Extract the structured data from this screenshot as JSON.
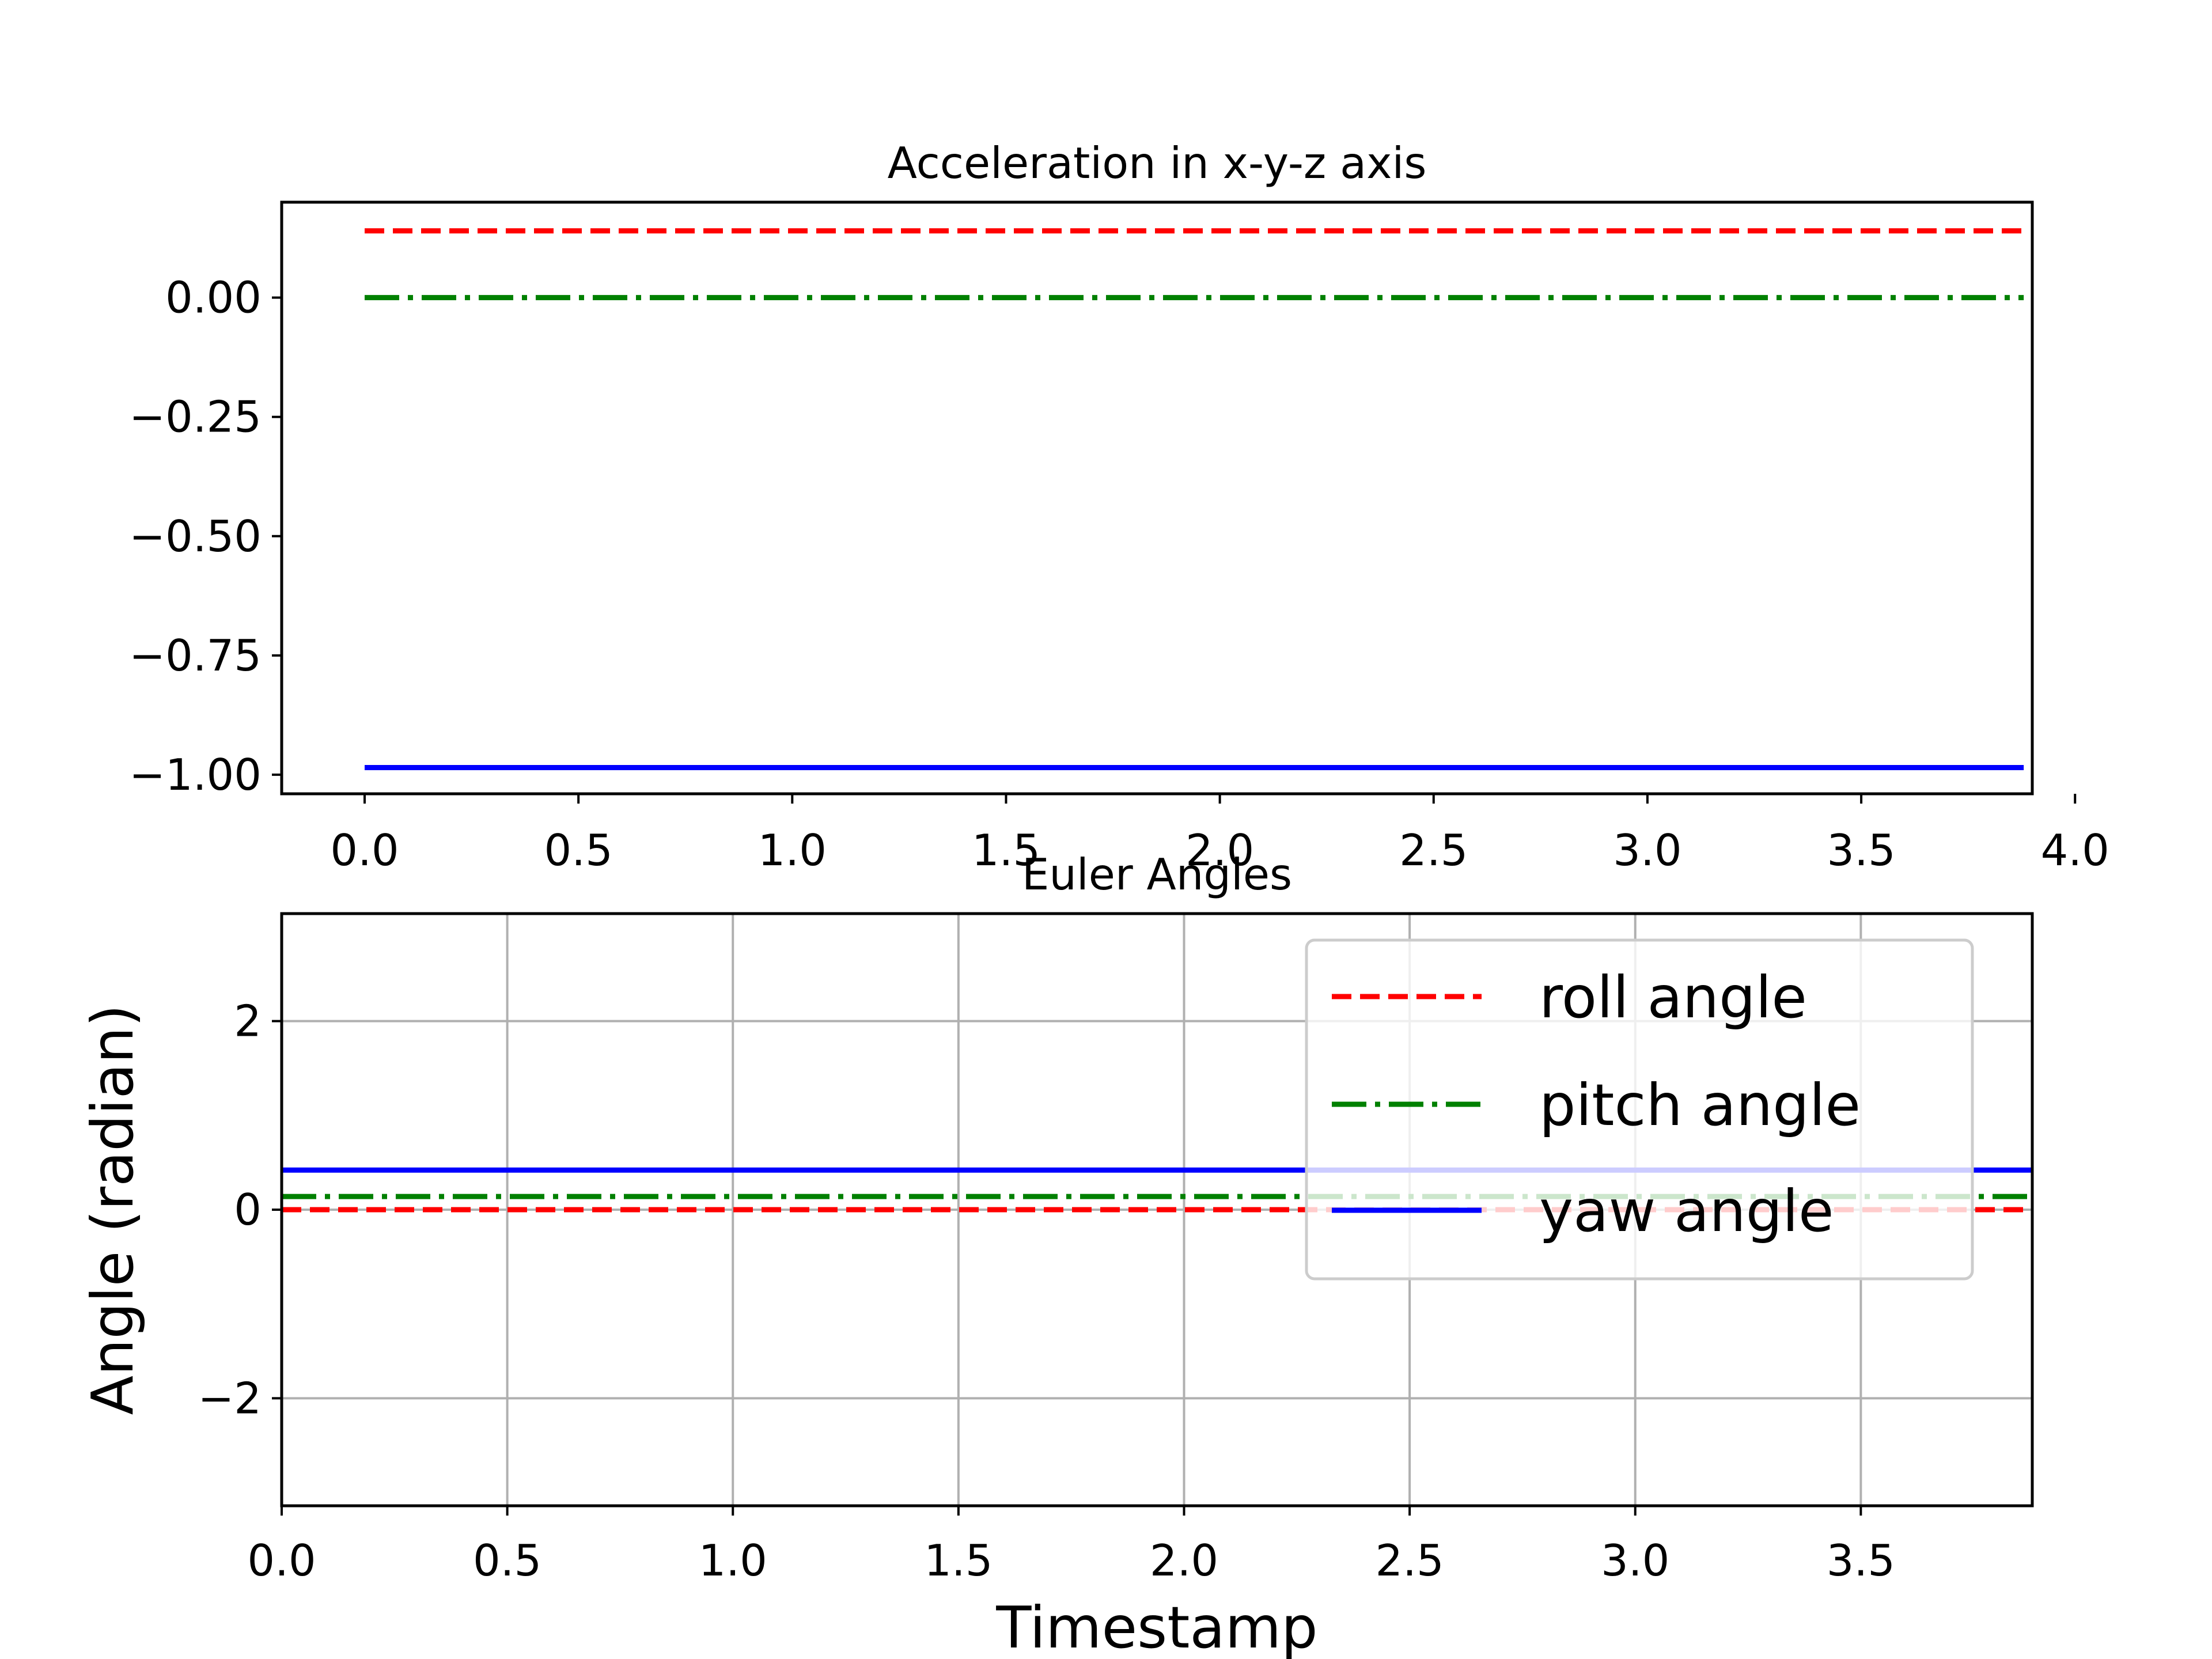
{
  "chart_data": [
    {
      "type": "line",
      "title": "Acceleration in x-y-z axis",
      "xlabel": "",
      "ylabel": "",
      "xlim": [
        -0.194,
        3.9
      ],
      "ylim": [
        -1.04,
        0.2
      ],
      "xticks": [
        "0.0",
        "0.5",
        "1.0",
        "1.5",
        "2.0",
        "2.5",
        "3.0",
        "3.5",
        "4.0"
      ],
      "yticks": [
        "0.00",
        "−0.25",
        "−0.50",
        "−0.75",
        "−1.00"
      ],
      "grid": false,
      "x": [
        0.0,
        3.88
      ],
      "series": [
        {
          "values": [
            0.14,
            0.14
          ],
          "color": "#ff0000",
          "style": "dashed"
        },
        {
          "values": [
            0.0,
            0.0
          ],
          "color": "#008000",
          "style": "dashdot"
        },
        {
          "values": [
            -0.985,
            -0.985
          ],
          "color": "#0000ff",
          "style": "solid"
        }
      ]
    },
    {
      "type": "line",
      "title": "Euler Angles",
      "xlabel": "Timestamp",
      "ylabel": "Angle (radian)",
      "xlim": [
        0.0,
        3.88
      ],
      "ylim": [
        -3.14,
        3.14
      ],
      "xticks": [
        "0.0",
        "0.5",
        "1.0",
        "1.5",
        "2.0",
        "2.5",
        "3.0",
        "3.5"
      ],
      "yticks": [
        "2",
        "0",
        "−2"
      ],
      "grid": true,
      "legend_position": "top-right",
      "x": [
        0.0,
        3.88
      ],
      "series": [
        {
          "name": "roll angle",
          "values": [
            0.0,
            0.0
          ],
          "color": "#ff0000",
          "style": "dashed"
        },
        {
          "name": "pitch angle",
          "values": [
            0.14,
            0.14
          ],
          "color": "#008000",
          "style": "dashdot"
        },
        {
          "name": "yaw angle",
          "values": [
            0.42,
            0.42
          ],
          "color": "#0000ff",
          "style": "solid"
        }
      ]
    }
  ]
}
